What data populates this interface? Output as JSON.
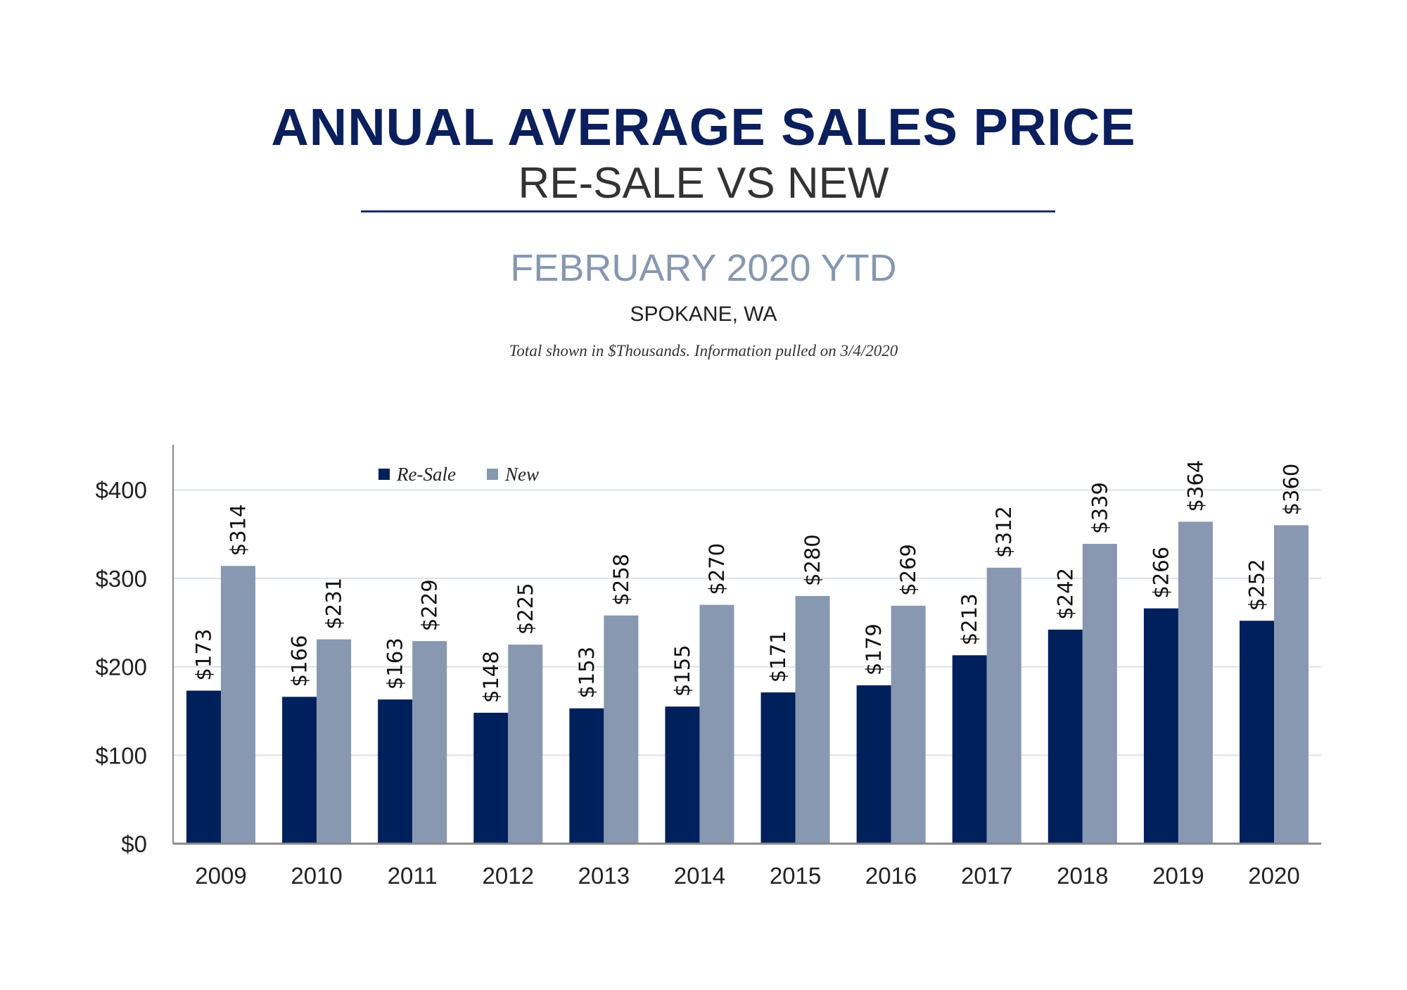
{
  "header": {
    "title": "ANNUAL AVERAGE SALES PRICE",
    "subtitle": "RE-SALE VS NEW",
    "period": "FEBRUARY 2020 YTD",
    "location": "SPOKANE, WA",
    "note": "Total shown in $Thousands. Information pulled on 3/4/2020"
  },
  "chart_data": {
    "type": "bar",
    "categories": [
      "2009",
      "2010",
      "2011",
      "2012",
      "2013",
      "2014",
      "2015",
      "2016",
      "2017",
      "2018",
      "2019",
      "2020"
    ],
    "series": [
      {
        "name": "Re-Sale",
        "color": "#00205b",
        "values": [
          173,
          166,
          163,
          148,
          153,
          155,
          171,
          179,
          213,
          242,
          266,
          252
        ],
        "labels": [
          "$173",
          "$166",
          "$163",
          "$148",
          "$153",
          "$155",
          "$171",
          "$179",
          "$213",
          "$242",
          "$266",
          "$252"
        ]
      },
      {
        "name": "New",
        "color": "#8798b0",
        "values": [
          314,
          231,
          229,
          225,
          258,
          270,
          280,
          269,
          312,
          339,
          364,
          360
        ],
        "labels": [
          "$314",
          "$231",
          "$229",
          "$225",
          "$258",
          "$270",
          "$280",
          "$269",
          "$312",
          "$339",
          "$364",
          "$360"
        ]
      }
    ],
    "yticks": [
      0,
      100,
      200,
      300,
      400
    ],
    "ytick_labels": [
      "$0",
      "$100",
      "$200",
      "$300",
      "$400"
    ],
    "ylim": [
      0,
      450
    ],
    "grid": true,
    "legend": "top-left",
    "gridline_color": "#dde0ee"
  }
}
